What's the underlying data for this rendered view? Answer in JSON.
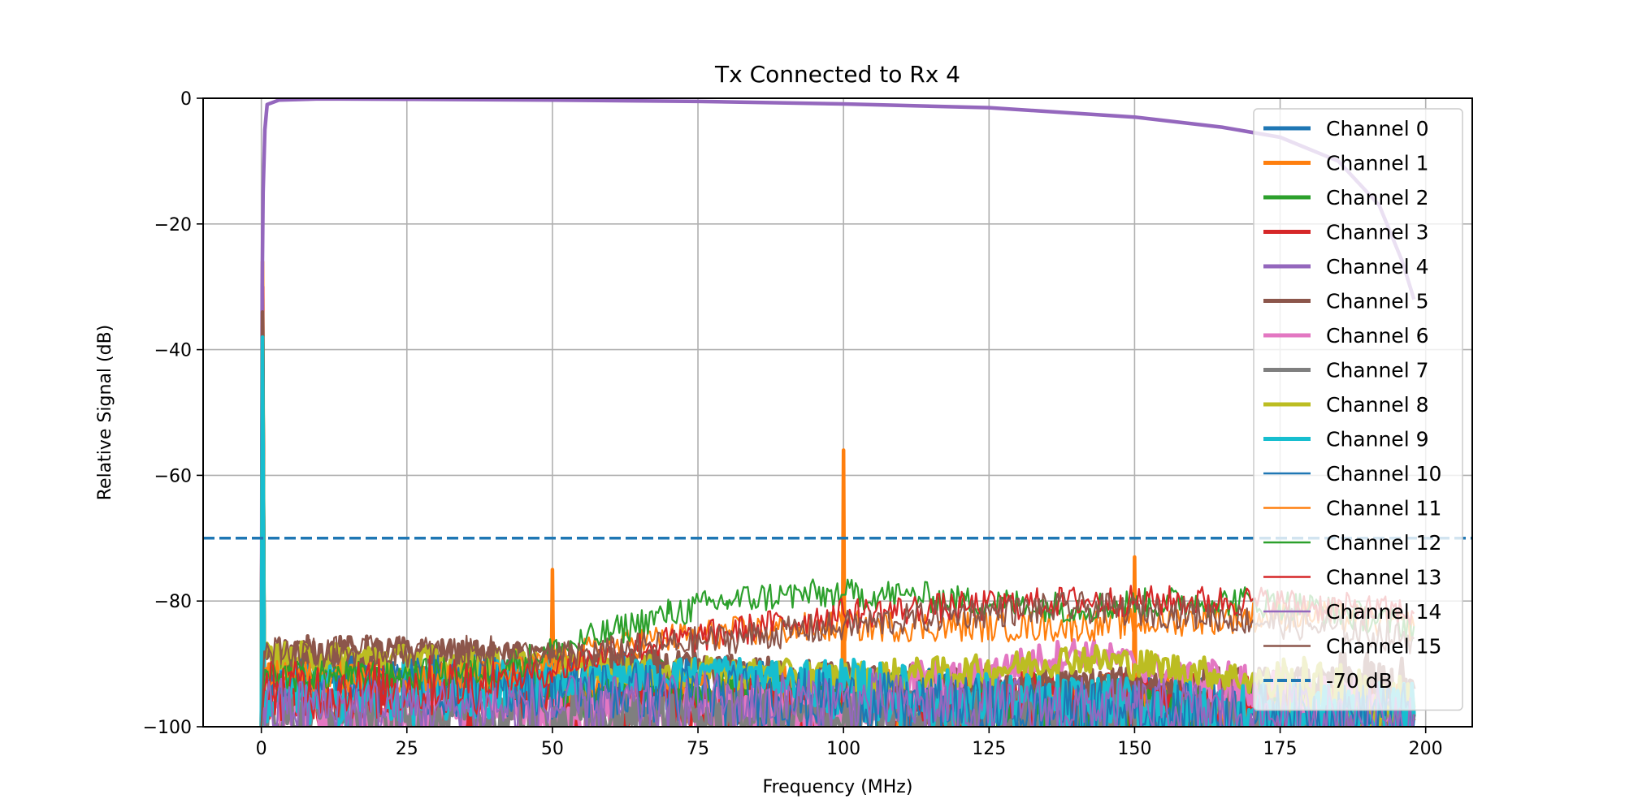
{
  "chart_data": {
    "type": "line",
    "title": "Tx Connected to Rx 4",
    "xlabel": "Frequency (MHz)",
    "ylabel": "Relative Signal (dB)",
    "xlim": [
      -10,
      208
    ],
    "ylim": [
      -100,
      0
    ],
    "xticks": [
      0,
      25,
      50,
      75,
      100,
      125,
      150,
      175,
      200
    ],
    "yticks": [
      0,
      -20,
      -40,
      -60,
      -80,
      -100
    ],
    "xtick_labels": [
      "0",
      "25",
      "50",
      "75",
      "100",
      "125",
      "150",
      "175",
      "200"
    ],
    "ytick_labels": [
      "0",
      "−20",
      "−40",
      "−60",
      "−80",
      "−100"
    ],
    "grid": true,
    "legend_position": "upper-right",
    "reference_line": {
      "name": "-70 dB",
      "y": -70,
      "color": "#1f77b4",
      "style": "dashed"
    },
    "series": [
      {
        "name": "Channel 0",
        "color": "#1f77b4",
        "width": "thick",
        "x": [
          0,
          0.2,
          0.5,
          5,
          20,
          40,
          50,
          60,
          80,
          100,
          120,
          140,
          150,
          170,
          185,
          198
        ],
        "y": [
          -100,
          -30,
          -92,
          -90,
          -91,
          -92,
          -92,
          -93,
          -94,
          -95,
          -96,
          -97,
          -97,
          -97,
          -98,
          -98
        ]
      },
      {
        "name": "Channel 1",
        "color": "#ff7f0e",
        "width": "thick",
        "x": [
          0,
          0.2,
          0.5,
          5,
          20,
          40,
          49.8,
          50,
          50.2,
          60,
          80,
          99.8,
          100,
          100.2,
          120,
          140,
          149.8,
          150,
          150.2,
          170,
          185,
          198
        ],
        "y": [
          -100,
          -26,
          -92,
          -92,
          -93,
          -93,
          -93,
          -75,
          -93,
          -94,
          -95,
          -95,
          -56,
          -95,
          -96,
          -96,
          -96,
          -73,
          -96,
          -97,
          -98,
          -98
        ]
      },
      {
        "name": "Channel 2",
        "color": "#2ca02c",
        "width": "thick",
        "x": [
          0,
          0.2,
          0.5,
          5,
          20,
          40,
          50,
          60,
          80,
          100,
          120,
          140,
          150,
          170,
          185,
          198
        ],
        "y": [
          -100,
          -32,
          -91,
          -91,
          -92,
          -93,
          -93,
          -94,
          -95,
          -96,
          -96,
          -97,
          -97,
          -97,
          -98,
          -98
        ]
      },
      {
        "name": "Channel 3",
        "color": "#d62728",
        "width": "thick",
        "x": [
          0,
          0.2,
          0.5,
          5,
          20,
          40,
          50,
          60,
          80,
          100,
          120,
          140,
          150,
          170,
          185,
          198
        ],
        "y": [
          -100,
          -30,
          -95,
          -96,
          -97,
          -97,
          -97,
          -98,
          -97,
          -97,
          -96,
          -96,
          -96,
          -97,
          -97,
          -97
        ]
      },
      {
        "name": "Channel 4",
        "color": "#9467bd",
        "width": "thick",
        "x": [
          0,
          0.15,
          0.3,
          0.6,
          1,
          3,
          10,
          25,
          50,
          75,
          100,
          125,
          150,
          165,
          175,
          185,
          192,
          196,
          198
        ],
        "y": [
          -100,
          -30,
          -15,
          -5,
          -1,
          -0.3,
          -0.1,
          -0.15,
          -0.3,
          -0.5,
          -0.9,
          -1.5,
          -3.0,
          -4.6,
          -6.2,
          -10.0,
          -17.0,
          -26.0,
          -32.0
        ]
      },
      {
        "name": "Channel 5",
        "color": "#8c564b",
        "width": "thick",
        "x": [
          0,
          0.2,
          0.5,
          5,
          20,
          40,
          50,
          60,
          80,
          100,
          120,
          140,
          150,
          170,
          185,
          198
        ],
        "y": [
          -100,
          -34,
          -88,
          -88,
          -88,
          -89,
          -89,
          -90,
          -91,
          -92,
          -93,
          -93,
          -93,
          -93,
          -93,
          -94
        ]
      },
      {
        "name": "Channel 6",
        "color": "#e377c2",
        "width": "thick",
        "x": [
          0,
          0.5,
          20,
          50,
          80,
          100,
          120,
          130,
          140,
          150,
          170,
          198
        ],
        "y": [
          -100,
          -98,
          -98,
          -99,
          -98,
          -97,
          -92,
          -90,
          -88,
          -90,
          -95,
          -98
        ]
      },
      {
        "name": "Channel 7",
        "color": "#7f7f7f",
        "width": "thick",
        "x": [
          0,
          0.5,
          20,
          50,
          80,
          100,
          120,
          150,
          170,
          198
        ],
        "y": [
          -100,
          -99,
          -99,
          -99,
          -99,
          -99,
          -99,
          -99,
          -99,
          -99
        ]
      },
      {
        "name": "Channel 8",
        "color": "#bcbd22",
        "width": "thick",
        "x": [
          0,
          0.2,
          0.5,
          5,
          20,
          40,
          60,
          100,
          125,
          140,
          160,
          180,
          198
        ],
        "y": [
          -100,
          -40,
          -89,
          -89,
          -89,
          -90,
          -91,
          -92,
          -91,
          -89,
          -91,
          -94,
          -97
        ]
      },
      {
        "name": "Channel 9",
        "color": "#17becf",
        "width": "thick",
        "x": [
          0,
          0.2,
          0.5,
          5,
          20,
          40,
          60,
          80,
          100,
          120,
          150,
          170,
          198
        ],
        "y": [
          -100,
          -38,
          -95,
          -95,
          -95,
          -94,
          -92,
          -91,
          -94,
          -96,
          -97,
          -98,
          -98
        ]
      },
      {
        "name": "Channel 10",
        "color": "#1f77b4",
        "width": "thin",
        "x": [
          0,
          0.5,
          20,
          50,
          80,
          100,
          120,
          150,
          170,
          198
        ],
        "y": [
          -100,
          -93,
          -93,
          -94,
          -95,
          -96,
          -97,
          -98,
          -98,
          -98
        ]
      },
      {
        "name": "Channel 11",
        "color": "#ff7f0e",
        "width": "thin",
        "x": [
          0,
          0.5,
          20,
          40,
          50,
          60,
          80,
          100,
          120,
          140,
          160,
          180,
          198
        ],
        "y": [
          -100,
          -92,
          -92,
          -92,
          -90,
          -87,
          -85,
          -84,
          -84,
          -84,
          -83,
          -82,
          -84
        ]
      },
      {
        "name": "Channel 12",
        "color": "#2ca02c",
        "width": "thin",
        "x": [
          0,
          0.5,
          20,
          40,
          50,
          60,
          70,
          80,
          90,
          100,
          110,
          120,
          140,
          160,
          170,
          180,
          198
        ],
        "y": [
          -100,
          -92,
          -92,
          -91,
          -88,
          -85,
          -82,
          -80,
          -79,
          -79,
          -79,
          -80,
          -81,
          -80,
          -80,
          -81,
          -84
        ]
      },
      {
        "name": "Channel 13",
        "color": "#d62728",
        "width": "thin",
        "x": [
          0,
          0.5,
          20,
          40,
          50,
          60,
          80,
          100,
          120,
          140,
          150,
          170,
          198
        ],
        "y": [
          -100,
          -94,
          -94,
          -93,
          -91,
          -88,
          -85,
          -82,
          -81,
          -80,
          -80,
          -80,
          -82
        ]
      },
      {
        "name": "Channel 14",
        "color": "#9467bd",
        "width": "thin",
        "x": [
          0,
          0.5,
          20,
          50,
          80,
          100,
          120,
          150,
          170,
          198
        ],
        "y": [
          -100,
          -97,
          -97,
          -97,
          -96,
          -96,
          -97,
          -97,
          -98,
          -98
        ]
      },
      {
        "name": "Channel 15",
        "color": "#8c564b",
        "width": "thin",
        "x": [
          0,
          0.5,
          20,
          40,
          50,
          60,
          80,
          100,
          120,
          140,
          160,
          180,
          198
        ],
        "y": [
          -100,
          -88,
          -88,
          -88,
          -89,
          -88,
          -86,
          -84,
          -82,
          -81,
          -82,
          -84,
          -86
        ]
      }
    ]
  }
}
